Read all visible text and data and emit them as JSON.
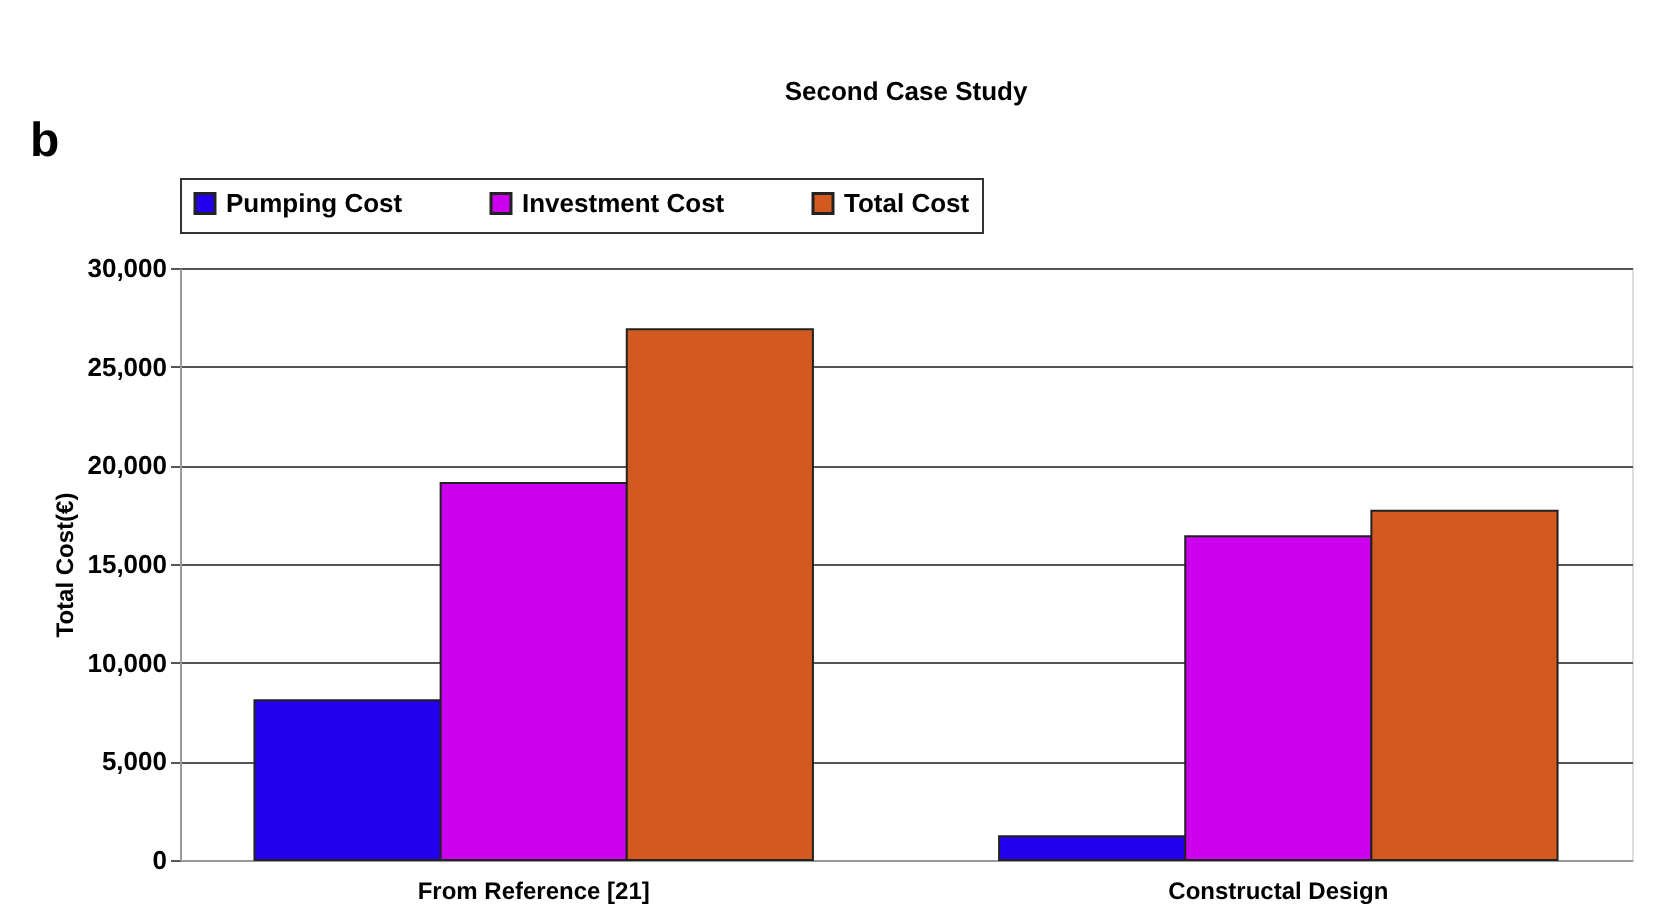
{
  "chart_data": {
    "type": "bar",
    "title": "Second Case Study",
    "ylabel": "Total Cost(€)",
    "annotations": [
      "b"
    ],
    "categories": [
      "From Reference [21]",
      "Constructal Design"
    ],
    "series": [
      {
        "name": "Pumping Cost",
        "color": "#2200ee",
        "values": [
          8100,
          1200
        ]
      },
      {
        "name": "Investment Cost",
        "color": "#cc00ee",
        "values": [
          19100,
          16400
        ]
      },
      {
        "name": "Total Cost",
        "color": "#d25a20",
        "values": [
          26900,
          17700
        ]
      }
    ],
    "ylim": [
      0,
      30000
    ],
    "yticks": [
      0,
      {
        "value": 5000,
        "label": "5,000"
      },
      {
        "value": 10000,
        "label": "10,000"
      },
      {
        "value": 15000,
        "label": "15,000"
      },
      {
        "value": 20000,
        "label": "20,000"
      },
      {
        "value": 25000,
        "label": "25,000"
      },
      {
        "value": 30000,
        "label": "30,000"
      }
    ],
    "grid": "y",
    "legend": "top"
  }
}
